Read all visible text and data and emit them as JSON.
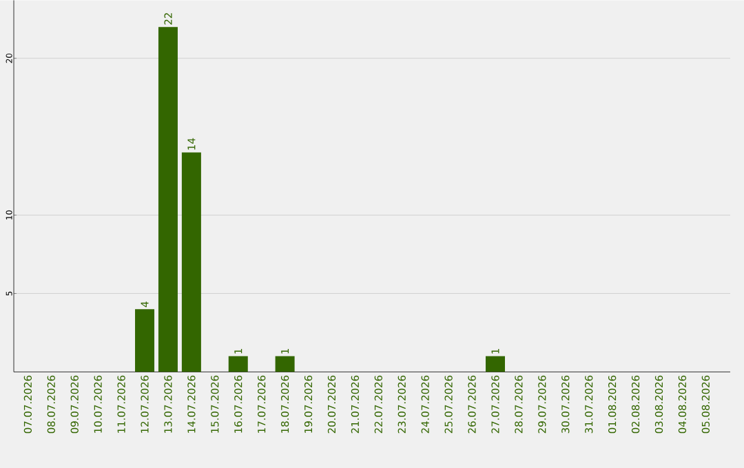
{
  "chart_data": {
    "type": "bar",
    "categories": [
      "07.07.2026",
      "08.07.2026",
      "09.07.2026",
      "10.07.2026",
      "11.07.2026",
      "12.07.2026",
      "13.07.2026",
      "14.07.2026",
      "15.07.2026",
      "16.07.2026",
      "17.07.2026",
      "18.07.2026",
      "19.07.2026",
      "20.07.2026",
      "21.07.2026",
      "22.07.2026",
      "23.07.2026",
      "24.07.2026",
      "25.07.2026",
      "26.07.2026",
      "27.07.2026",
      "28.07.2026",
      "29.07.2026",
      "30.07.2026",
      "31.07.2026",
      "01.08.2026",
      "02.08.2026",
      "03.08.2026",
      "04.08.2026",
      "05.08.2026"
    ],
    "values": [
      0,
      0,
      0,
      0,
      0,
      4,
      22,
      14,
      0,
      1,
      0,
      1,
      0,
      0,
      0,
      0,
      0,
      0,
      0,
      0,
      1,
      0,
      0,
      0,
      0,
      0,
      0,
      0,
      0,
      0
    ],
    "value_labels": [
      null,
      null,
      null,
      null,
      null,
      "4",
      "22",
      "14",
      null,
      "1",
      null,
      "1",
      null,
      null,
      null,
      null,
      null,
      null,
      null,
      null,
      "1",
      null,
      null,
      null,
      null,
      null,
      null,
      null,
      null,
      null
    ],
    "color": "#336600",
    "ylim": [
      0,
      23.7
    ],
    "yticks": [
      5,
      10,
      20
    ],
    "grid": "y"
  }
}
